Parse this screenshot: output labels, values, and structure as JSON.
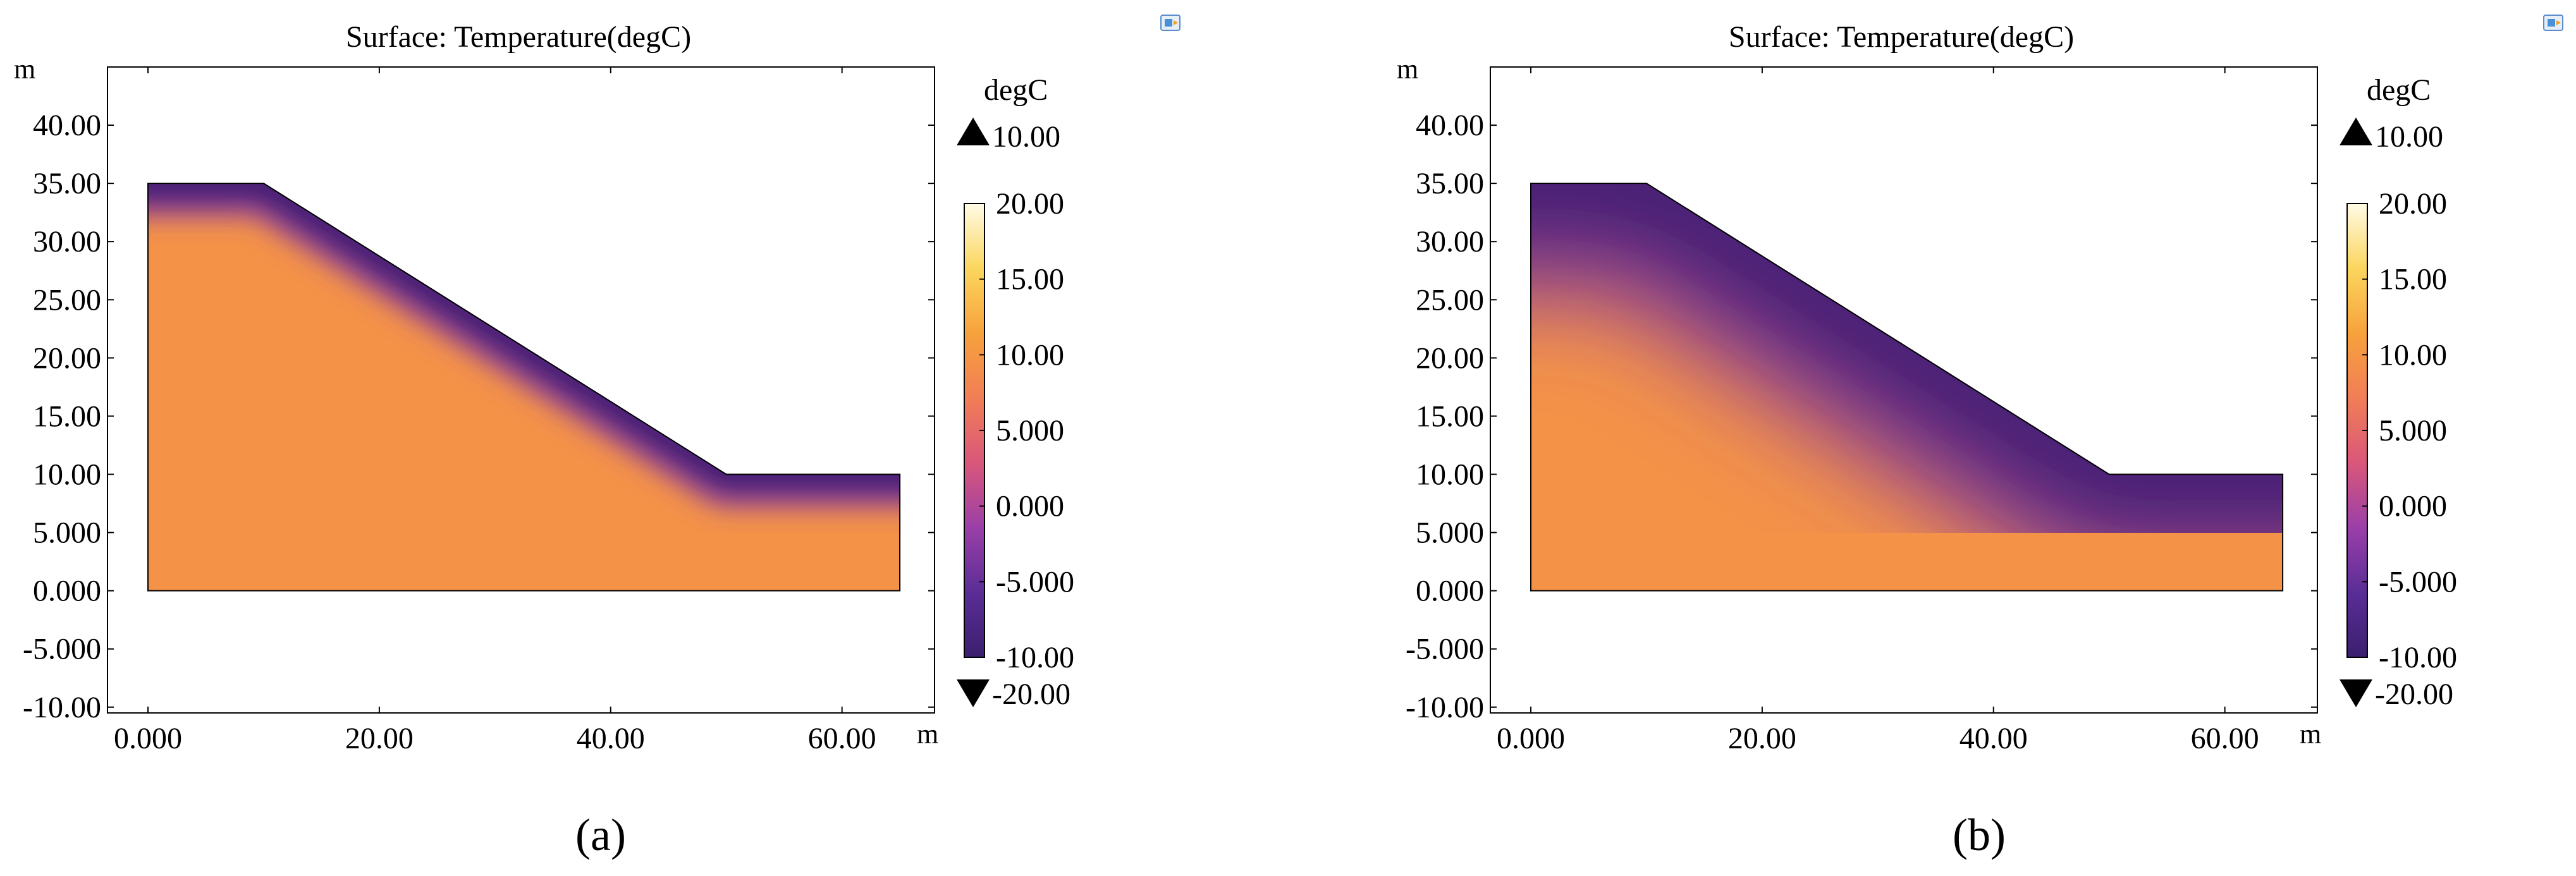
{
  "chart_data": [
    {
      "type": "heatmap",
      "panel_label": "a",
      "title": "Surface: Temperature(degC)",
      "xlabel": "m",
      "ylabel": "m",
      "xlim": [
        -3.5,
        68
      ],
      "ylim": [
        -10.5,
        45
      ],
      "x_ticks": [
        0,
        20,
        40,
        60
      ],
      "x_tick_labels": [
        "0.000",
        "20.00",
        "40.00",
        "60.00"
      ],
      "y_ticks": [
        40,
        35,
        30,
        25,
        20,
        15,
        10,
        5,
        0,
        -5,
        -10
      ],
      "y_tick_labels": [
        "40.00",
        "35.00",
        "30.00",
        "25.00",
        "20.00",
        "15.00",
        "10.00",
        "5.000",
        "0.000",
        "-5.000",
        "-10.00"
      ],
      "domain_polygon": [
        [
          0,
          0
        ],
        [
          0,
          35
        ],
        [
          10,
          35
        ],
        [
          50,
          10
        ],
        [
          65,
          10
        ],
        [
          65,
          0
        ]
      ],
      "surface_temperature_degC": -10,
      "interior_temperature_degC": 9.5,
      "frozen_layer_depth_m": 2.5,
      "colorbar": {
        "unit": "degC",
        "range": [
          -10,
          20
        ],
        "tick_labels": [
          "20.00",
          "15.00",
          "10.00",
          "5.000",
          "0.000",
          "-5.000",
          "-10.00"
        ],
        "max_marker_label": "10.00",
        "min_marker_label": "-20.00",
        "colors": [
          "#3b1f6e",
          "#5a2d96",
          "#9b3fa8",
          "#d9577a",
          "#f17e56",
          "#f7a23c",
          "#fbd65e",
          "#fffbe6"
        ]
      },
      "caption": "(a)"
    },
    {
      "type": "heatmap",
      "panel_label": "b",
      "title": "Surface: Temperature(degC)",
      "xlabel": "m",
      "ylabel": "m",
      "xlim": [
        -3.5,
        68
      ],
      "ylim": [
        -10.5,
        45
      ],
      "x_ticks": [
        0,
        20,
        40,
        60
      ],
      "x_tick_labels": [
        "0.000",
        "20.00",
        "40.00",
        "60.00"
      ],
      "y_ticks": [
        40,
        35,
        30,
        25,
        20,
        15,
        10,
        5,
        0,
        -5,
        -10
      ],
      "y_tick_labels": [
        "40.00",
        "35.00",
        "30.00",
        "25.00",
        "20.00",
        "15.00",
        "10.00",
        "5.000",
        "0.000",
        "-5.000",
        "-10.00"
      ],
      "domain_polygon": [
        [
          0,
          0
        ],
        [
          0,
          35
        ],
        [
          10,
          35
        ],
        [
          50,
          10
        ],
        [
          65,
          10
        ],
        [
          65,
          0
        ]
      ],
      "surface_temperature_degC": -10,
      "interior_temperature_degC": 9.5,
      "frozen_layer_depth_m": 9,
      "colorbar": {
        "unit": "degC",
        "range": [
          -10,
          20
        ],
        "tick_labels": [
          "20.00",
          "15.00",
          "10.00",
          "5.000",
          "0.000",
          "-5.000",
          "-10.00"
        ],
        "max_marker_label": "10.00",
        "min_marker_label": "-20.00",
        "colors": [
          "#3b1f6e",
          "#5a2d96",
          "#9b3fa8",
          "#d9577a",
          "#f17e56",
          "#f7a23c",
          "#fbd65e",
          "#fffbe6"
        ]
      },
      "caption": "(b)"
    }
  ]
}
